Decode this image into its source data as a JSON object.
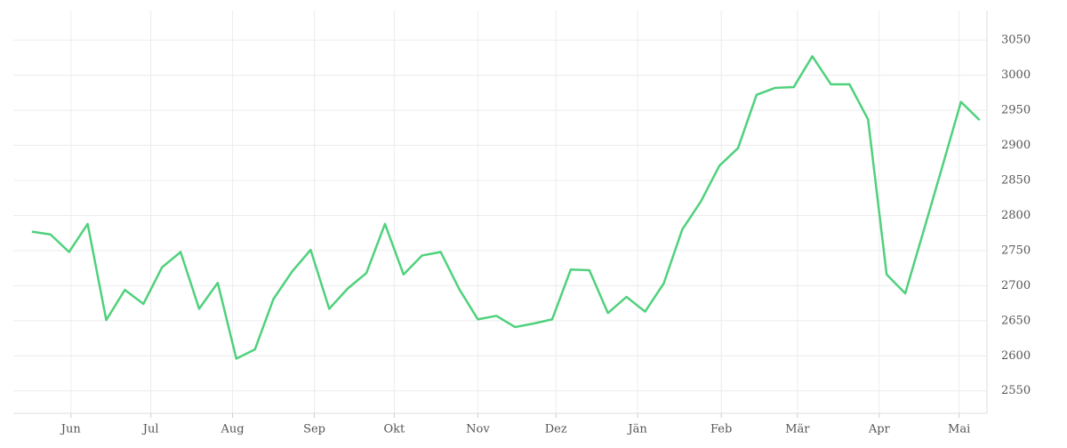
{
  "chart_data": {
    "type": "line",
    "x": [
      0,
      1,
      2,
      3,
      4,
      5,
      6,
      7,
      8,
      9,
      10,
      11,
      12,
      13,
      14,
      15,
      16,
      17,
      18,
      19,
      20,
      21,
      22,
      23,
      24,
      25,
      26,
      27,
      28,
      29,
      30,
      31,
      32,
      33,
      34,
      35,
      36,
      37,
      38,
      39,
      40,
      41,
      42,
      43,
      44,
      45,
      46,
      47,
      48,
      49,
      50,
      51
    ],
    "series": [
      {
        "color": "#4fd17c",
        "values": [
          2777,
          2773,
          2748,
          2788,
          2651,
          2694,
          2674,
          2726,
          2748,
          2667,
          2704,
          2596,
          2609,
          2681,
          2720,
          2751,
          2667,
          2696,
          2718,
          2788,
          2716,
          2743,
          2748,
          2695,
          2652,
          2657,
          2641,
          2646,
          2652,
          2723,
          2722,
          2661,
          2684,
          2663,
          2703,
          2780,
          2820,
          2871,
          2896,
          2972,
          2982,
          2983,
          3027,
          2987,
          2987,
          2937,
          2716,
          2689,
          2779,
          2870,
          2962,
          2936
        ]
      }
    ],
    "xlim": [
      -1,
      51.4
    ],
    "xticks": [
      {
        "value": 2.1,
        "label": "Jun"
      },
      {
        "value": 6.4,
        "label": "Jul"
      },
      {
        "value": 10.8,
        "label": "Aug"
      },
      {
        "value": 15.2,
        "label": "Sep"
      },
      {
        "value": 19.5,
        "label": "Okt"
      },
      {
        "value": 24,
        "label": "Nov"
      },
      {
        "value": 28.2,
        "label": "Dez"
      },
      {
        "value": 32.6,
        "label": "Jän"
      },
      {
        "value": 37.1,
        "label": "Feb"
      },
      {
        "value": 41.2,
        "label": "Mär"
      },
      {
        "value": 45.6,
        "label": "Apr"
      },
      {
        "value": 49.9,
        "label": "Mai"
      }
    ],
    "ylim": [
      2518,
      3092
    ],
    "yticks": [
      2550,
      2600,
      2650,
      2700,
      2750,
      2800,
      2850,
      2900,
      2950,
      3000,
      3050
    ],
    "grid": true
  }
}
